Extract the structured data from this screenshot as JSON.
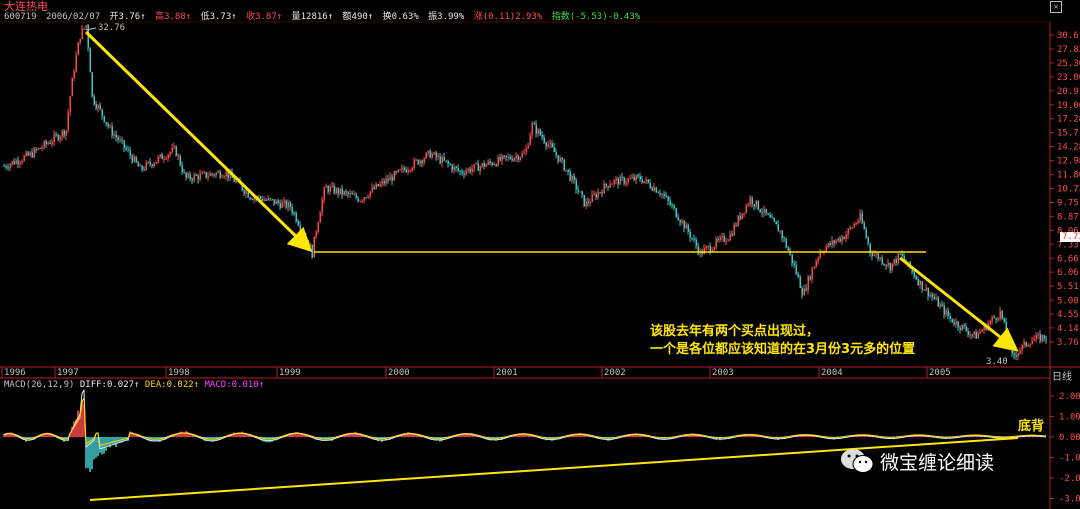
{
  "stock": {
    "name": "大连热电"
  },
  "info": {
    "code": "600719",
    "date": "2006/02/07",
    "open": "开3.76↑",
    "high": "高3.88↑",
    "low": "低3.73↑",
    "close": "收3.87↑",
    "volume": "量12816↑",
    "amount": "额490↑",
    "turnover": "换0.63%",
    "amplitude": "振3.99%",
    "change": "涨(0.11)2.93%",
    "index": "指数(-5.53)-0.43%"
  },
  "chart_data": [
    {
      "type": "line",
      "title": "",
      "price_axis": {
        "scale": "log",
        "ticks": [
          "30.61",
          "27.82",
          "25.30",
          "23.00",
          "20.91",
          "19.00",
          "17.28",
          "15.71",
          "14.28",
          "12.98",
          "11.80",
          "10.73",
          "9.75",
          "8.87",
          "8.06",
          "7.33",
          "6.66",
          "6.06",
          "5.51",
          "5.00",
          "4.55",
          "4.14",
          "3.76"
        ]
      },
      "x_ticks": [
        "1996",
        "1997",
        "1998",
        "1999",
        "2000",
        "2001",
        "2002",
        "2003",
        "2004",
        "2005"
      ],
      "high_mark": "32.76",
      "low_mark": "3.40",
      "last_price": "7.73",
      "support_level": 6.7
    },
    {
      "type": "line",
      "title": "",
      "y_ticks": [
        "2.00",
        "1.00",
        "0.00",
        "-1.00",
        "-2.00",
        "-3.00"
      ]
    }
  ],
  "macd": {
    "label": "MACD(26,12,9)",
    "diff": "DIFF:0.027↑",
    "dea": "DEA:0.022↑",
    "macd": "MACD:0.010↑"
  },
  "period": "日线",
  "annotation": {
    "line1": "该股去年有两个买点出现过，",
    "line2": "一个是各位都应该知道的在3月份3元多的位置"
  },
  "divergence_label": "底背",
  "watermark": "微宝缠论细读",
  "colors": {
    "up": "#ff4a4a",
    "down": "#3fc8c8",
    "arrow": "#ffe600"
  }
}
